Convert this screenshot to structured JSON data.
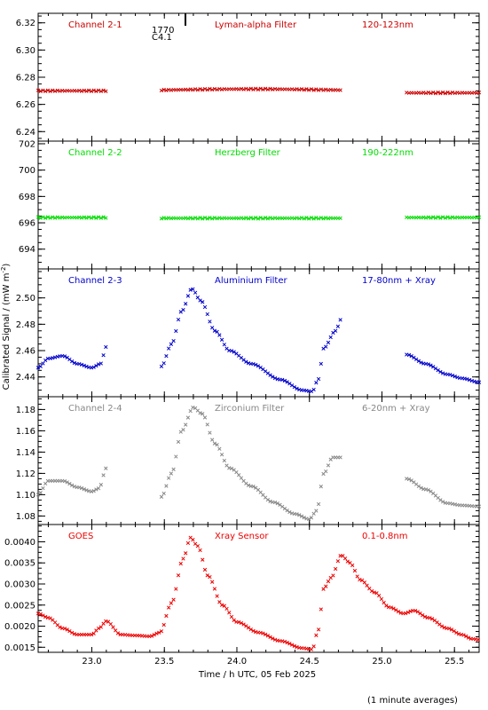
{
  "figure": {
    "xlabel": "Time / h UTC, 05 Feb 2025",
    "ylabel": "Calibrated Signal / (mW m",
    "ylabel_sup": "-2",
    "ylabel_close": ")",
    "footnote": "(1 minute averages)",
    "event_label_1": "1770",
    "event_label_2": "C4.1"
  },
  "chart_data": [
    {
      "type": "scatter",
      "name": "Channel 2-1",
      "filter": "Lyman-alpha Filter",
      "band": "120-123nm",
      "color": "#cc0000",
      "xlim": [
        22.63,
        25.67
      ],
      "ylim": [
        6.233,
        6.327
      ],
      "yticks": [
        6.24,
        6.26,
        6.28,
        6.3,
        6.32
      ],
      "ytick_labels": [
        "6.24",
        "6.26",
        "6.28",
        "6.30",
        "6.32"
      ],
      "xticks": [
        23.0,
        23.5,
        24.0,
        24.5,
        25.0,
        25.5
      ],
      "segments": [
        {
          "x0": 22.63,
          "x1": 23.1,
          "kind": "flat",
          "v": 6.27
        },
        {
          "x0": 23.48,
          "x1": 24.72,
          "kind": "flat",
          "v": 6.2705,
          "drift": 0.0008
        },
        {
          "x0": 25.17,
          "x1": 25.67,
          "kind": "flat",
          "v": 6.2685
        }
      ]
    },
    {
      "type": "scatter",
      "name": "Channel 2-2",
      "filter": "Herzberg Filter",
      "band": "190-222nm",
      "color": "#00dd00",
      "xlim": [
        22.63,
        25.67
      ],
      "ylim": [
        692.5,
        702.2
      ],
      "yticks": [
        694,
        696,
        698,
        700,
        702
      ],
      "ytick_labels": [
        "694",
        "696",
        "698",
        "700",
        "702"
      ],
      "xticks": [
        23.0,
        23.5,
        24.0,
        24.5,
        25.0,
        25.5
      ],
      "segments": [
        {
          "x0": 22.63,
          "x1": 23.1,
          "kind": "flat",
          "v": 696.4
        },
        {
          "x0": 23.48,
          "x1": 24.72,
          "kind": "flat",
          "v": 696.35
        },
        {
          "x0": 25.17,
          "x1": 25.67,
          "kind": "flat",
          "v": 696.4
        }
      ]
    },
    {
      "type": "scatter",
      "name": "Channel 2-3",
      "filter": "Aluminium Filter",
      "band": "17-80nm + Xray",
      "color": "#0000cc",
      "xlim": [
        22.63,
        25.67
      ],
      "ylim": [
        2.425,
        2.522
      ],
      "yticks": [
        2.44,
        2.46,
        2.48,
        2.5
      ],
      "ytick_labels": [
        "2.44",
        "2.46",
        "2.48",
        "2.50"
      ],
      "xticks": [
        23.0,
        23.5,
        24.0,
        24.5,
        25.0,
        25.5
      ],
      "segments": [
        {
          "x0": 22.63,
          "x1": 23.1,
          "kind": "curve",
          "pts": [
            [
              22.63,
              2.447
            ],
            [
              22.7,
              2.454
            ],
            [
              22.8,
              2.456
            ],
            [
              22.9,
              2.45
            ],
            [
              23.0,
              2.447
            ],
            [
              23.06,
              2.45
            ],
            [
              23.1,
              2.463
            ]
          ]
        },
        {
          "x0": 23.48,
          "x1": 24.72,
          "kind": "curve",
          "pts": [
            [
              23.48,
              2.448
            ],
            [
              23.55,
              2.465
            ],
            [
              23.62,
              2.49
            ],
            [
              23.69,
              2.507
            ],
            [
              23.75,
              2.498
            ],
            [
              23.85,
              2.475
            ],
            [
              23.95,
              2.46
            ],
            [
              24.1,
              2.45
            ],
            [
              24.3,
              2.438
            ],
            [
              24.45,
              2.43
            ],
            [
              24.52,
              2.429
            ],
            [
              24.56,
              2.438
            ],
            [
              24.6,
              2.462
            ],
            [
              24.68,
              2.475
            ],
            [
              24.72,
              2.484
            ]
          ]
        },
        {
          "x0": 25.17,
          "x1": 25.67,
          "kind": "curve",
          "pts": [
            [
              25.17,
              2.457
            ],
            [
              25.3,
              2.45
            ],
            [
              25.45,
              2.442
            ],
            [
              25.55,
              2.439
            ],
            [
              25.67,
              2.436
            ]
          ]
        }
      ]
    },
    {
      "type": "scatter",
      "name": "Channel 2-4",
      "filter": "Zirconium Filter",
      "band": "6-20nm + Xray",
      "color": "#888888",
      "xlim": [
        22.63,
        25.67
      ],
      "ylim": [
        1.072,
        1.192
      ],
      "yticks": [
        1.08,
        1.1,
        1.12,
        1.14,
        1.16,
        1.18
      ],
      "ytick_labels": [
        "1.08",
        "1.10",
        "1.12",
        "1.14",
        "1.16",
        "1.18"
      ],
      "xticks": [
        23.0,
        23.5,
        24.0,
        24.5,
        25.0,
        25.5
      ],
      "segments": [
        {
          "x0": 22.63,
          "x1": 23.1,
          "kind": "curve",
          "pts": [
            [
              22.63,
              1.1
            ],
            [
              22.7,
              1.113
            ],
            [
              22.8,
              1.113
            ],
            [
              22.9,
              1.107
            ],
            [
              23.0,
              1.103
            ],
            [
              23.05,
              1.106
            ],
            [
              23.1,
              1.125
            ]
          ]
        },
        {
          "x0": 23.48,
          "x1": 24.72,
          "kind": "curve",
          "pts": [
            [
              23.48,
              1.098
            ],
            [
              23.55,
              1.12
            ],
            [
              23.62,
              1.16
            ],
            [
              23.7,
              1.182
            ],
            [
              23.76,
              1.176
            ],
            [
              23.85,
              1.148
            ],
            [
              23.95,
              1.125
            ],
            [
              24.1,
              1.108
            ],
            [
              24.25,
              1.093
            ],
            [
              24.4,
              1.082
            ],
            [
              24.5,
              1.077
            ],
            [
              24.55,
              1.085
            ],
            [
              24.6,
              1.12
            ],
            [
              24.66,
              1.135
            ],
            [
              24.72,
              1.135
            ]
          ]
        },
        {
          "x0": 25.17,
          "x1": 25.67,
          "kind": "curve",
          "pts": [
            [
              25.17,
              1.115
            ],
            [
              25.3,
              1.105
            ],
            [
              25.45,
              1.092
            ],
            [
              25.55,
              1.09
            ],
            [
              25.67,
              1.089
            ]
          ]
        }
      ]
    },
    {
      "type": "scatter",
      "name": "GOES",
      "filter": "Xray Sensor",
      "band": "0.1-0.8nm",
      "color": "#ee0000",
      "xlim": [
        22.63,
        25.67
      ],
      "ylim": [
        0.00138,
        0.00441
      ],
      "yticks": [
        0.0015,
        0.002,
        0.0025,
        0.003,
        0.0035,
        0.004
      ],
      "ytick_labels": [
        "0.0015",
        "0.0020",
        "0.0025",
        "0.0030",
        "0.0035",
        "0.0040"
      ],
      "xticks": [
        23.0,
        23.5,
        24.0,
        24.5,
        25.0,
        25.5
      ],
      "xtick_labels": [
        "23.0",
        "23.5",
        "24.0",
        "24.5",
        "25.0",
        "25.5"
      ],
      "segments": [
        {
          "x0": 22.63,
          "x1": 25.67,
          "kind": "curve",
          "pts": [
            [
              22.63,
              0.0023
            ],
            [
              22.7,
              0.0022
            ],
            [
              22.8,
              0.00195
            ],
            [
              22.9,
              0.0018
            ],
            [
              23.0,
              0.0018
            ],
            [
              23.05,
              0.00195
            ],
            [
              23.1,
              0.00212
            ],
            [
              23.2,
              0.0018
            ],
            [
              23.3,
              0.00178
            ],
            [
              23.4,
              0.00176
            ],
            [
              23.47,
              0.00185
            ],
            [
              23.55,
              0.00255
            ],
            [
              23.63,
              0.0036
            ],
            [
              23.68,
              0.0041
            ],
            [
              23.73,
              0.0039
            ],
            [
              23.8,
              0.0032
            ],
            [
              23.9,
              0.0025
            ],
            [
              24.0,
              0.0021
            ],
            [
              24.15,
              0.00185
            ],
            [
              24.3,
              0.00165
            ],
            [
              24.45,
              0.00148
            ],
            [
              24.52,
              0.00145
            ],
            [
              24.56,
              0.0019
            ],
            [
              24.6,
              0.0029
            ],
            [
              24.65,
              0.00315
            ],
            [
              24.72,
              0.00368
            ],
            [
              24.78,
              0.0035
            ],
            [
              24.85,
              0.0031
            ],
            [
              24.95,
              0.0028
            ],
            [
              25.05,
              0.00245
            ],
            [
              25.15,
              0.0023
            ],
            [
              25.22,
              0.00237
            ],
            [
              25.32,
              0.0022
            ],
            [
              25.45,
              0.00195
            ],
            [
              25.55,
              0.0018
            ],
            [
              25.62,
              0.0017
            ],
            [
              25.67,
              0.00168
            ]
          ]
        }
      ]
    }
  ]
}
